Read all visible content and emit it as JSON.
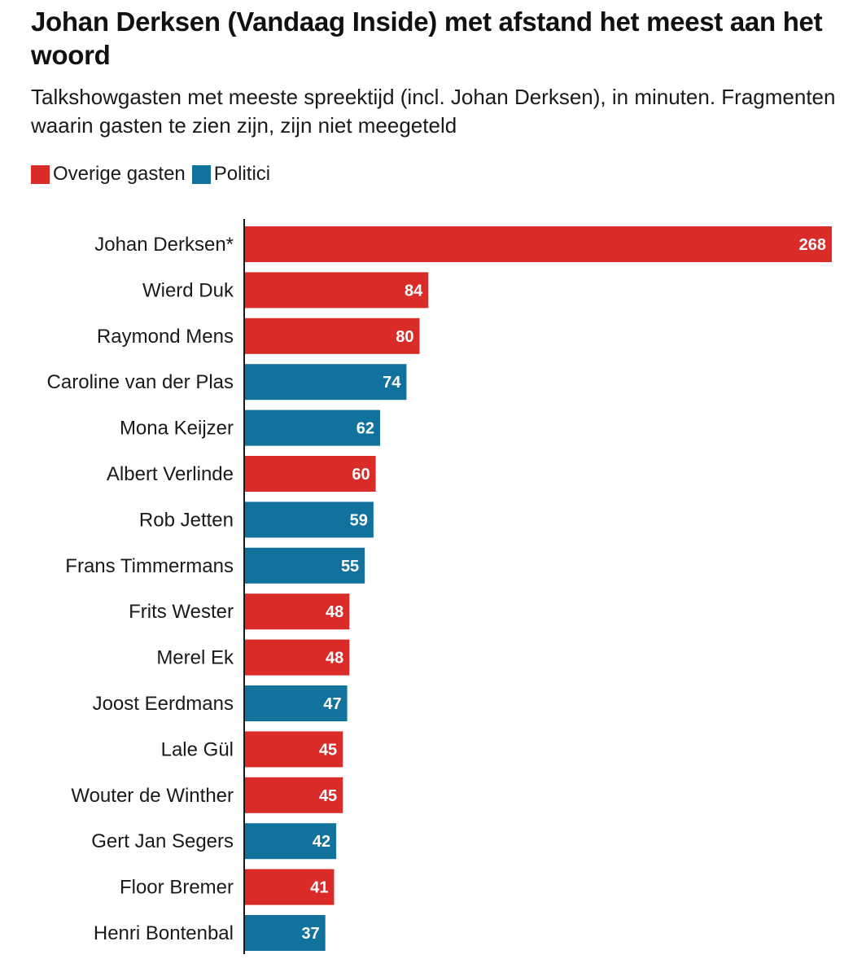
{
  "chart_data": {
    "type": "bar",
    "orientation": "horizontal",
    "title": "Johan Derksen (Vandaag Inside) met afstand het meest aan het woord",
    "subtitle": "Talkshowgasten met meeste spreektijd (incl. Johan Derksen), in minuten. Fragmenten waarin gasten te zien zijn, zijn niet meegeteld",
    "legend": [
      {
        "name": "Overige gasten",
        "color": "#d92b27"
      },
      {
        "name": "Politici",
        "color": "#12729e"
      }
    ],
    "categories": [
      "Johan Derksen*",
      "Wierd Duk",
      "Raymond Mens",
      "Caroline van der Plas",
      "Mona Keijzer",
      "Albert Verlinde",
      "Rob Jetten",
      "Frans Timmermans",
      "Frits Wester",
      "Merel Ek",
      "Joost Eerdmans",
      "Lale Gül",
      "Wouter de Winther",
      "Gert Jan Segers",
      "Floor Bremer",
      "Henri Bontenbal"
    ],
    "values": [
      268,
      84,
      80,
      74,
      62,
      60,
      59,
      55,
      48,
      48,
      47,
      45,
      45,
      42,
      41,
      37
    ],
    "groups": [
      "Overige gasten",
      "Overige gasten",
      "Overige gasten",
      "Politici",
      "Politici",
      "Overige gasten",
      "Politici",
      "Politici",
      "Overige gasten",
      "Overige gasten",
      "Politici",
      "Overige gasten",
      "Overige gasten",
      "Politici",
      "Overige gasten",
      "Politici"
    ],
    "xlim": [
      0,
      268
    ],
    "unit": "minuten"
  }
}
